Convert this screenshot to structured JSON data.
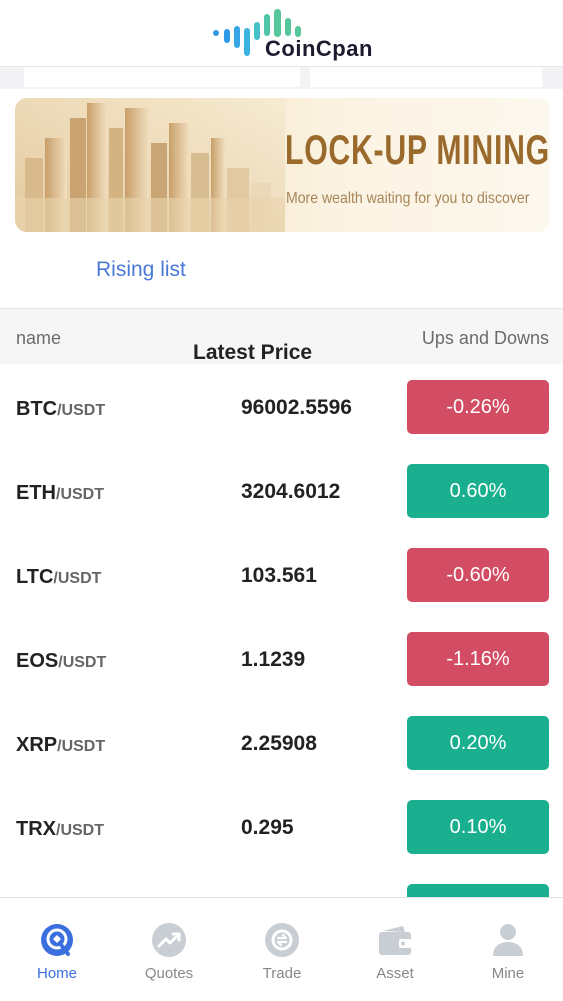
{
  "brand": {
    "name": "CoinCpan"
  },
  "banner": {
    "title": "LOCK-UP MINING",
    "subtitle": "More wealth waiting for you to discover"
  },
  "list_tab": "Rising list",
  "table": {
    "headers": {
      "name": "name",
      "price": "Latest Price",
      "change": "Ups and Downs"
    },
    "rows": [
      {
        "base": "BTC",
        "quote": "/USDT",
        "price": "96002.5596",
        "change": "-0.26%",
        "direction": "down"
      },
      {
        "base": "ETH",
        "quote": "/USDT",
        "price": "3204.6012",
        "change": "0.60%",
        "direction": "up"
      },
      {
        "base": "LTC",
        "quote": "/USDT",
        "price": "103.561",
        "change": "-0.60%",
        "direction": "down"
      },
      {
        "base": "EOS",
        "quote": "/USDT",
        "price": "1.1239",
        "change": "-1.16%",
        "direction": "down"
      },
      {
        "base": "XRP",
        "quote": "/USDT",
        "price": "2.25908",
        "change": "0.20%",
        "direction": "up"
      },
      {
        "base": "TRX",
        "quote": "/USDT",
        "price": "0.295",
        "change": "0.10%",
        "direction": "up"
      },
      {
        "base": "",
        "quote": "",
        "price": "",
        "change": "",
        "direction": "up"
      }
    ]
  },
  "nav": [
    {
      "label": "Home",
      "icon": "home-icon",
      "active": true
    },
    {
      "label": "Quotes",
      "icon": "quotes-icon",
      "active": false
    },
    {
      "label": "Trade",
      "icon": "trade-icon",
      "active": false
    },
    {
      "label": "Asset",
      "icon": "wallet-icon",
      "active": false
    },
    {
      "label": "Mine",
      "icon": "user-icon",
      "active": false
    }
  ],
  "colors": {
    "accent": "#3b6fde",
    "up": "#1aaf8f",
    "down": "#d24c63",
    "banner_text": "#9a6a2d"
  }
}
